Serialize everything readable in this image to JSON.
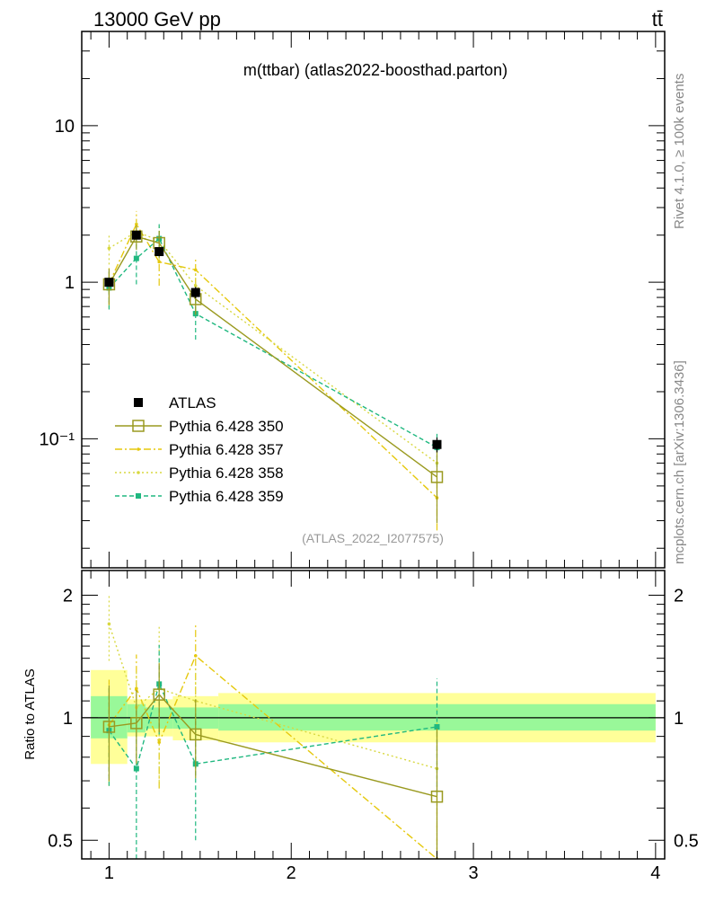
{
  "header": {
    "energy_label": "13000 GeV pp",
    "process_label": "tt̄"
  },
  "side": {
    "rivet_label": "Rivet 4.1.0, ≥ 100k events",
    "site_label": "mcplots.cern.ch [arXiv:1306.3436]"
  },
  "chart_data": [
    {
      "type": "line",
      "panel": "main",
      "title": "m(ttbar) (atlas2022-boosthad.parton)",
      "watermark": "(ATLAS_2022_I2077575)",
      "yscale": "log",
      "ylim": [
        0.015,
        40
      ],
      "xlim": [
        0.85,
        4.05
      ],
      "ytick_labels": [
        "10⁻¹",
        "1",
        "10"
      ],
      "legend": [
        "ATLAS",
        "Pythia 6.428 350",
        "Pythia 6.428 357",
        "Pythia 6.428 358",
        "Pythia 6.428 359"
      ],
      "legend_position": "bottom-left",
      "series": [
        {
          "name": "ATLAS",
          "color": "#000000",
          "x": [
            1.0,
            1.15,
            1.275,
            1.475,
            2.8
          ],
          "values": [
            1.0,
            2.0,
            1.57,
            0.86,
            0.092
          ],
          "err": [
            0.06,
            0.12,
            0.1,
            0.07,
            0.01
          ]
        },
        {
          "name": "Pythia 6.428 350",
          "color": "#9a9a20",
          "x": [
            1.0,
            1.15,
            1.275,
            1.475,
            2.8
          ],
          "values": [
            0.97,
            1.96,
            1.78,
            0.78,
            0.057
          ],
          "err": [
            0.25,
            0.35,
            0.35,
            0.16,
            0.028
          ]
        },
        {
          "name": "Pythia 6.428 357",
          "color": "#e5c80c",
          "x": [
            1.0,
            1.15,
            1.275,
            1.475,
            2.8
          ],
          "values": [
            0.98,
            2.35,
            1.35,
            1.2,
            0.042
          ],
          "err": [
            0.3,
            0.5,
            0.4,
            0.25,
            0.016
          ]
        },
        {
          "name": "Pythia 6.428 358",
          "color": "#d8d840",
          "x": [
            1.0,
            1.15,
            1.275,
            1.475,
            2.8
          ],
          "values": [
            1.65,
            2.1,
            1.85,
            0.95,
            0.07
          ],
          "err": [
            0.35,
            0.4,
            0.45,
            0.2,
            0.025
          ]
        },
        {
          "name": "Pythia 6.428 359",
          "color": "#20b880",
          "x": [
            1.0,
            1.15,
            1.275,
            1.475,
            2.8
          ],
          "values": [
            0.92,
            1.42,
            1.9,
            0.63,
            0.088
          ],
          "err": [
            0.25,
            0.45,
            0.45,
            0.2,
            0.022
          ]
        }
      ]
    },
    {
      "type": "line",
      "panel": "ratio",
      "ylabel": "Ratio to ATLAS",
      "yscale": "log",
      "ylim": [
        0.45,
        2.3
      ],
      "xlim": [
        0.85,
        4.05
      ],
      "xtick_labels": [
        "1",
        "2",
        "3",
        "4"
      ],
      "ytick_labels": [
        "0.5",
        "1",
        "2"
      ],
      "bands": [
        {
          "x0": 0.9,
          "x1": 1.1,
          "stat_lo": 0.89,
          "stat_hi": 1.13,
          "tot_lo": 0.77,
          "tot_hi": 1.31
        },
        {
          "x0": 1.1,
          "x1": 1.2,
          "stat_lo": 0.92,
          "stat_hi": 1.08,
          "tot_lo": 0.9,
          "tot_hi": 1.11
        },
        {
          "x0": 1.2,
          "x1": 1.35,
          "stat_lo": 0.94,
          "stat_hi": 1.06,
          "tot_lo": 0.9,
          "tot_hi": 1.11
        },
        {
          "x0": 1.35,
          "x1": 1.6,
          "stat_lo": 0.94,
          "stat_hi": 1.06,
          "tot_lo": 0.88,
          "tot_hi": 1.13
        },
        {
          "x0": 1.6,
          "x1": 4.0,
          "stat_lo": 0.93,
          "stat_hi": 1.08,
          "tot_lo": 0.87,
          "tot_hi": 1.15
        }
      ],
      "series": [
        {
          "name": "Pythia 6.428 350",
          "color": "#9a9a20",
          "x": [
            1.0,
            1.15,
            1.275,
            1.475,
            2.8
          ],
          "values": [
            0.95,
            0.97,
            1.14,
            0.91,
            0.64
          ],
          "err": [
            0.25,
            0.2,
            0.22,
            0.2,
            0.3
          ]
        },
        {
          "name": "Pythia 6.428 357",
          "color": "#e5c80c",
          "x": [
            1.0,
            1.15,
            1.275,
            1.475,
            2.8
          ],
          "values": [
            0.96,
            1.18,
            0.87,
            1.42,
            0.45
          ],
          "err": [
            0.28,
            0.25,
            0.2,
            0.28,
            0.2
          ]
        },
        {
          "name": "Pythia 6.428 358",
          "color": "#d8d840",
          "x": [
            1.0,
            1.15,
            1.275,
            1.475,
            2.8
          ],
          "values": [
            1.7,
            1.06,
            1.18,
            1.1,
            0.75
          ],
          "err": [
            0.32,
            0.25,
            0.5,
            0.25,
            0.3
          ]
        },
        {
          "name": "Pythia 6.428 359",
          "color": "#20b880",
          "x": [
            1.0,
            1.15,
            1.275,
            1.475,
            2.8
          ],
          "values": [
            0.93,
            0.75,
            1.21,
            0.77,
            0.95
          ],
          "err": [
            0.25,
            0.3,
            0.3,
            0.27,
            0.3
          ]
        }
      ]
    }
  ]
}
